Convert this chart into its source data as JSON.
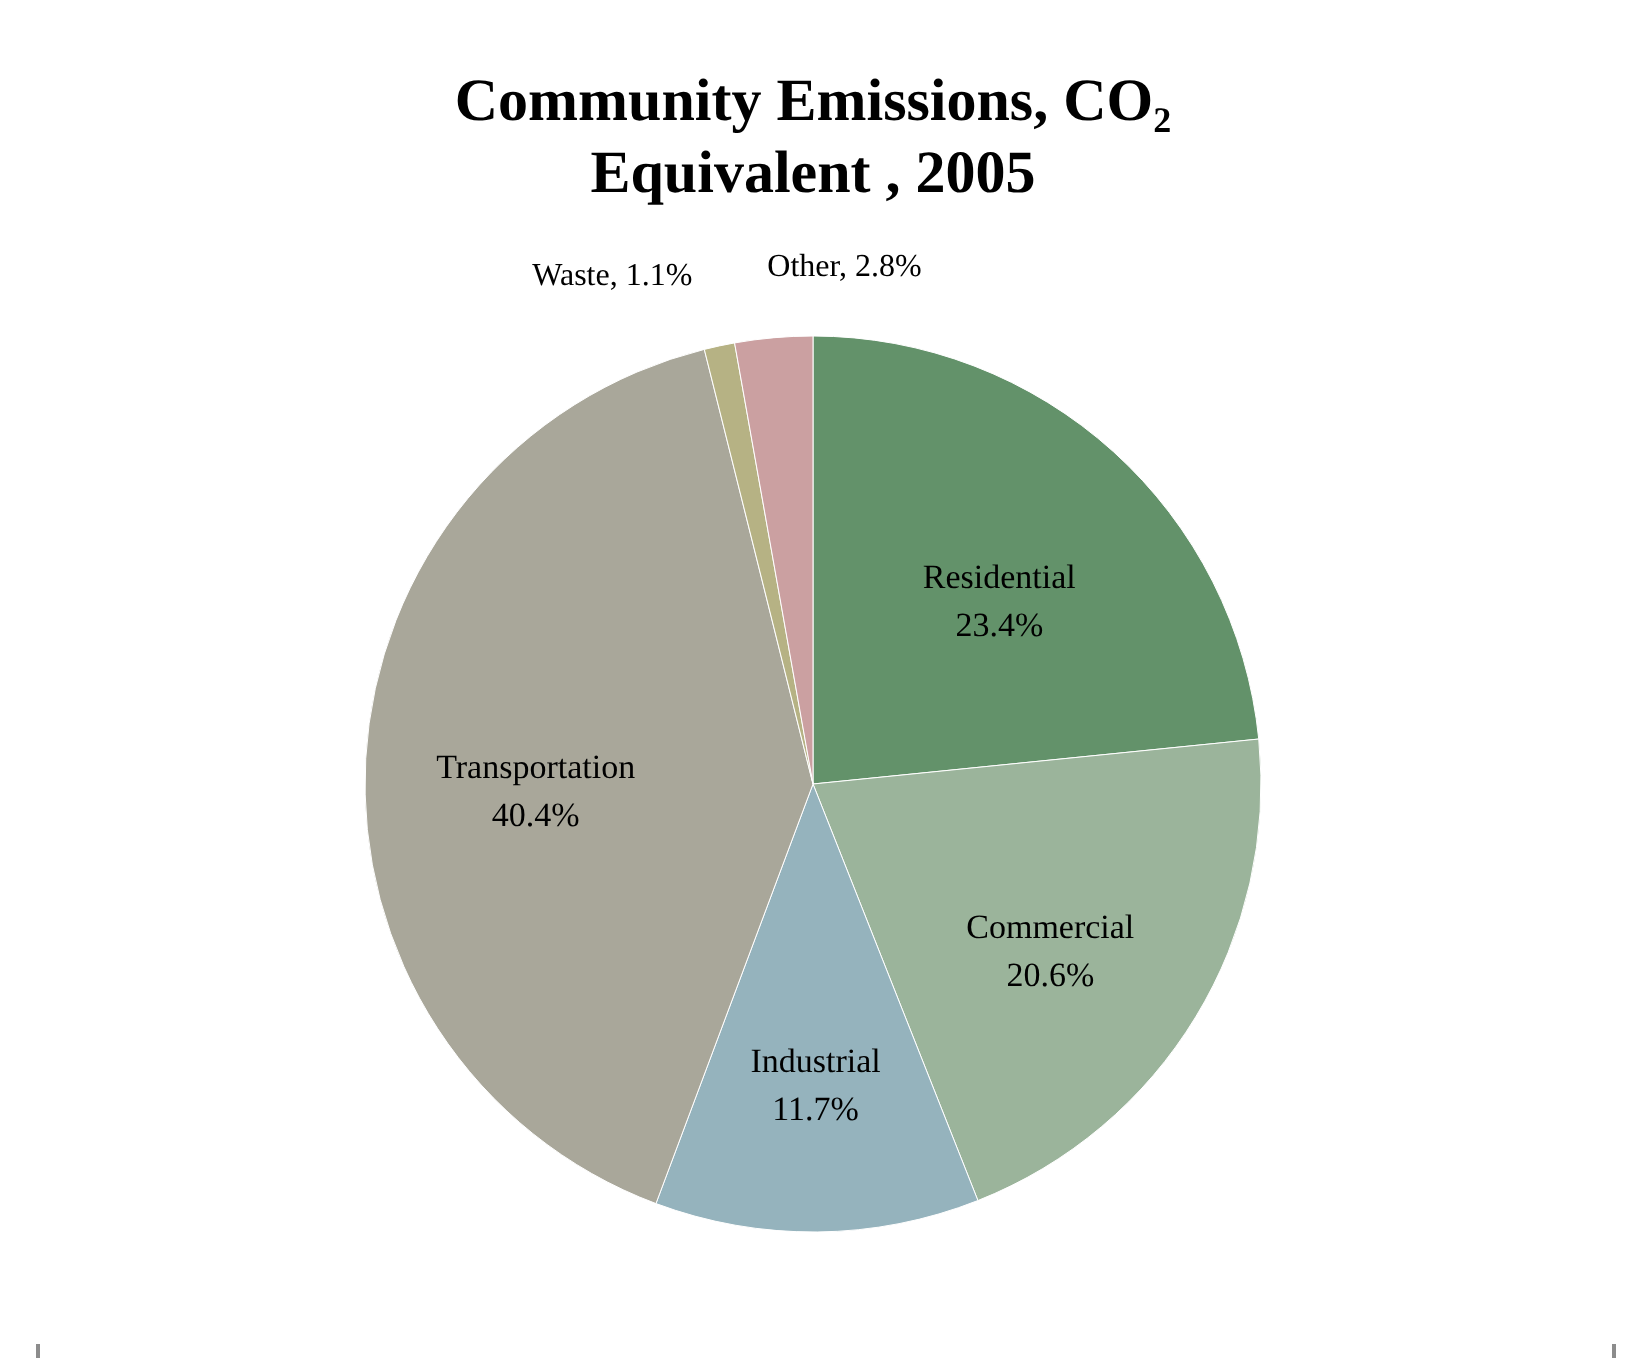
{
  "chart_data": {
    "type": "pie",
    "title": "Community  Emissions, CO₂\nEquivalent , 2005",
    "categories": [
      "Residential",
      "Commercial",
      "Industrial",
      "Transportation",
      "Waste",
      "Other"
    ],
    "values": [
      23.4,
      20.6,
      11.7,
      40.4,
      1.1,
      2.8
    ],
    "value_labels": [
      "23.4%",
      "20.6%",
      "11.7%",
      "40.4%",
      "1.1%",
      "2.8%"
    ],
    "colors": [
      "#63926a",
      "#9bb49b",
      "#95b3bd",
      "#a9a79a",
      "#b6b284",
      "#cba0a1"
    ]
  }
}
